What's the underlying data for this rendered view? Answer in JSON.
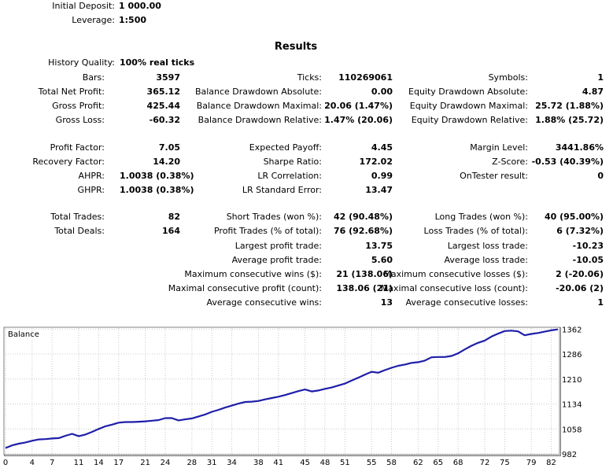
{
  "header": {
    "initial_deposit": {
      "label": "Initial Deposit:",
      "value": "1 000.00"
    },
    "leverage": {
      "label": "Leverage:",
      "value": "1:500"
    }
  },
  "results_title": "Results",
  "history_quality": {
    "label": "History Quality:",
    "value": "100% real ticks"
  },
  "rows": [
    [
      {
        "label": "Bars:",
        "value": "3597"
      },
      {
        "label": "Ticks:",
        "value": "110269061"
      },
      {
        "label": "Symbols:",
        "value": "1"
      }
    ],
    [
      {
        "label": "Total Net Profit:",
        "value": "365.12"
      },
      {
        "label": "Balance Drawdown Absolute:",
        "value": "0.00"
      },
      {
        "label": "Equity Drawdown Absolute:",
        "value": "4.87"
      }
    ],
    [
      {
        "label": "Gross Profit:",
        "value": "425.44"
      },
      {
        "label": "Balance Drawdown Maximal:",
        "value": "20.06 (1.47%)"
      },
      {
        "label": "Equity Drawdown Maximal:",
        "value": "25.72 (1.88%)"
      }
    ],
    [
      {
        "label": "Gross Loss:",
        "value": "-60.32"
      },
      {
        "label": "Balance Drawdown Relative:",
        "value": "1.47% (20.06)"
      },
      {
        "label": "Equity Drawdown Relative:",
        "value": "1.88% (25.72)"
      }
    ],
    [
      {
        "label": "Profit Factor:",
        "value": "7.05"
      },
      {
        "label": "Expected Payoff:",
        "value": "4.45"
      },
      {
        "label": "Margin Level:",
        "value": "3441.86%"
      }
    ],
    [
      {
        "label": "Recovery Factor:",
        "value": "14.20"
      },
      {
        "label": "Sharpe Ratio:",
        "value": "172.02"
      },
      {
        "label": "Z-Score:",
        "value": "-0.53 (40.39%)"
      }
    ],
    [
      {
        "label": "AHPR:",
        "value": "1.0038 (0.38%)"
      },
      {
        "label": "LR Correlation:",
        "value": "0.99"
      },
      {
        "label": "OnTester result:",
        "value": "0"
      }
    ],
    [
      {
        "label": "GHPR:",
        "value": "1.0038 (0.38%)"
      },
      {
        "label": "LR Standard Error:",
        "value": "13.47"
      },
      null
    ],
    [
      {
        "label": "Total Trades:",
        "value": "82"
      },
      {
        "label": "Short Trades (won %):",
        "value": "42 (90.48%)"
      },
      {
        "label": "Long Trades (won %):",
        "value": "40 (95.00%)"
      }
    ],
    [
      {
        "label": "Total Deals:",
        "value": "164"
      },
      {
        "label": "Profit Trades (% of total):",
        "value": "76 (92.68%)"
      },
      {
        "label": "Loss Trades (% of total):",
        "value": "6 (7.32%)"
      }
    ],
    [
      null,
      {
        "label": "Largest profit trade:",
        "value": "13.75"
      },
      {
        "label": "Largest loss trade:",
        "value": "-10.23"
      }
    ],
    [
      null,
      {
        "label": "Average profit trade:",
        "value": "5.60"
      },
      {
        "label": "Average loss trade:",
        "value": "-10.05"
      }
    ],
    [
      null,
      {
        "label": "Maximum consecutive wins ($):",
        "value": "21 (138.06)"
      },
      {
        "label": "Maximum consecutive losses ($):",
        "value": "2 (-20.06)"
      }
    ],
    [
      null,
      {
        "label": "Maximal consecutive profit (count):",
        "value": "138.06 (21)"
      },
      {
        "label": "Maximal consecutive loss (count):",
        "value": "-20.06 (2)"
      }
    ],
    [
      null,
      {
        "label": "Average consecutive wins:",
        "value": "13"
      },
      {
        "label": "Average consecutive losses:",
        "value": "1"
      }
    ]
  ],
  "chart_data": {
    "type": "line",
    "title": "Balance",
    "x_ticks": [
      "0",
      "4",
      "7",
      "11",
      "14",
      "17",
      "21",
      "24",
      "28",
      "31",
      "34",
      "38",
      "41",
      "45",
      "48",
      "51",
      "55",
      "58",
      "62",
      "65",
      "68",
      "72",
      "75",
      "79",
      "82"
    ],
    "y_ticks": [
      "982",
      "1058",
      "1134",
      "1210",
      "1286",
      "1362"
    ],
    "xlim": [
      0,
      83
    ],
    "ylim": [
      982,
      1365
    ],
    "line_color": "#1e1ea8",
    "series": [
      {
        "x": [
          0,
          1,
          2,
          3,
          4,
          5,
          6,
          7,
          8,
          9,
          10,
          11,
          12,
          13,
          14,
          15,
          16,
          17,
          18,
          19,
          20,
          21,
          22,
          23,
          24,
          25,
          26,
          27,
          28,
          29,
          30,
          31,
          32,
          33,
          34,
          35,
          36,
          37,
          38,
          39,
          40,
          41,
          42,
          43,
          44,
          45,
          46,
          47,
          48,
          49,
          50,
          51,
          52,
          53,
          54,
          55,
          56,
          57,
          58,
          59,
          60,
          61,
          62,
          63,
          64,
          65,
          66,
          67,
          68,
          69,
          70,
          71,
          72,
          73,
          74,
          75,
          76,
          77,
          78,
          79,
          80,
          81,
          82,
          83
        ],
        "y": [
          1000,
          1008,
          1013,
          1017,
          1022,
          1026,
          1027,
          1029,
          1030,
          1037,
          1043,
          1036,
          1041,
          1049,
          1058,
          1066,
          1071,
          1077,
          1079,
          1079,
          1080,
          1081,
          1083,
          1085,
          1091,
          1091,
          1084,
          1087,
          1090,
          1096,
          1102,
          1110,
          1116,
          1123,
          1129,
          1135,
          1140,
          1141,
          1143,
          1148,
          1152,
          1156,
          1161,
          1167,
          1173,
          1178,
          1172,
          1175,
          1180,
          1184,
          1190,
          1196,
          1205,
          1214,
          1223,
          1232,
          1229,
          1237,
          1244,
          1250,
          1254,
          1259,
          1261,
          1266,
          1276,
          1277,
          1277,
          1280,
          1288,
          1300,
          1311,
          1320,
          1327,
          1339,
          1348,
          1356,
          1357,
          1355,
          1343,
          1347,
          1350,
          1354,
          1358,
          1361
        ]
      }
    ]
  }
}
